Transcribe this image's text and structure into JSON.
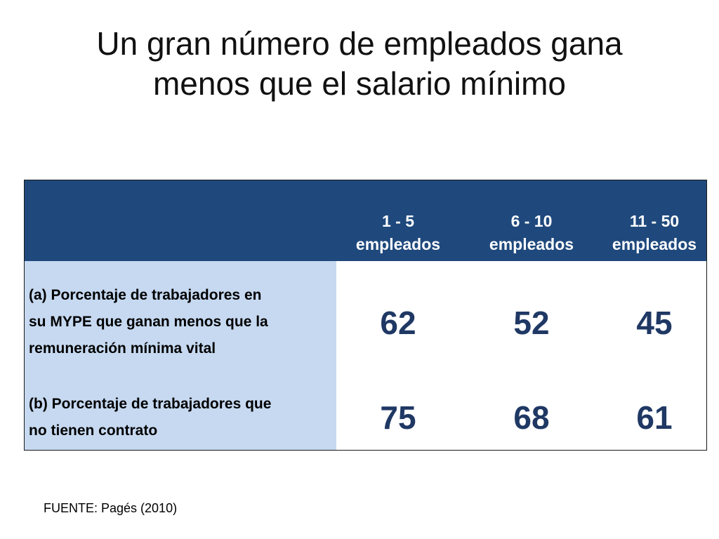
{
  "title": {
    "line1": "Un gran número de empleados gana",
    "line2": "menos que el salario mínimo"
  },
  "table": {
    "columns": [
      {
        "line1": "1 - 5",
        "line2": "empleados"
      },
      {
        "line1": "6 - 10",
        "line2": "empleados"
      },
      {
        "line1": "11 - 50",
        "line2": "empleados"
      }
    ],
    "rows": [
      {
        "label_lines": [
          "(a) Porcentaje de trabajadores en",
          "su MYPE que ganan menos que la",
          "remuneración mínima vital"
        ],
        "values": [
          "62",
          "52",
          "45"
        ]
      },
      {
        "label_lines": [
          "(b) Porcentaje de trabajadores que",
          "no tienen contrato"
        ],
        "values": [
          "75",
          "68",
          "61"
        ]
      }
    ]
  },
  "source": "FUENTE: Pagés (2010)",
  "colors": {
    "header_bg": "#1f497d",
    "label_bg": "#c6d9f1",
    "value_text": "#1f3864"
  }
}
